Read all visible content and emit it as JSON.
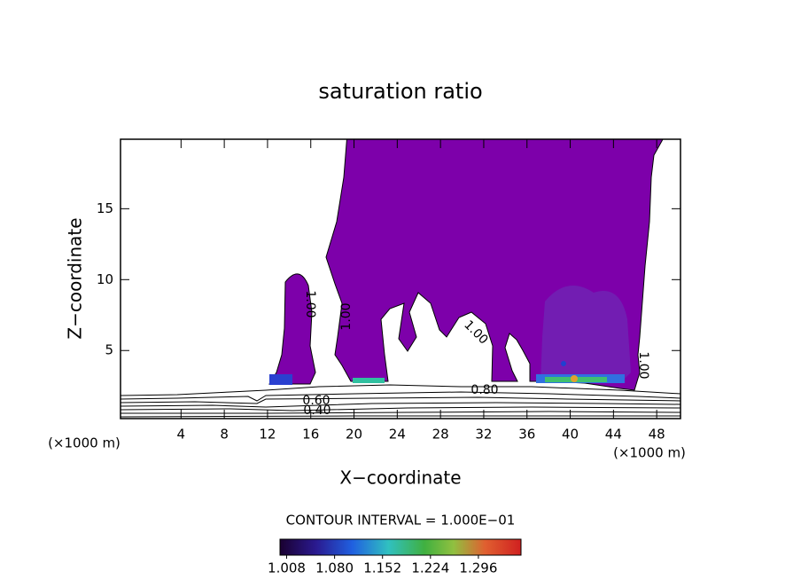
{
  "chart_data": {
    "type": "contour",
    "title": "saturation ratio",
    "xlabel": "X−coordinate",
    "ylabel": "Z−coordinate",
    "x_unit_left": "(×1000 m)",
    "x_unit_right": "(×1000 m)",
    "xlim": [
      -1.6,
      50.2
    ],
    "xticks": [
      4,
      8,
      12,
      16,
      20,
      24,
      28,
      32,
      36,
      40,
      44,
      48
    ],
    "ylim": [
      0.2,
      19.9
    ],
    "yticks": [
      5,
      10,
      15
    ],
    "contour_labels": [
      "1.00",
      "1.00",
      "1.00",
      "1.00",
      "0.80",
      "0.60",
      "0.40"
    ],
    "contour_interval": "CONTOUR INTERVAL = 1.000E−01",
    "clim": [
      0.998,
      1.36
    ],
    "cticks": [
      1.008,
      {
        "value": 1.08,
        "label": "1.080"
      },
      1.152,
      1.224,
      1.296
    ]
  }
}
